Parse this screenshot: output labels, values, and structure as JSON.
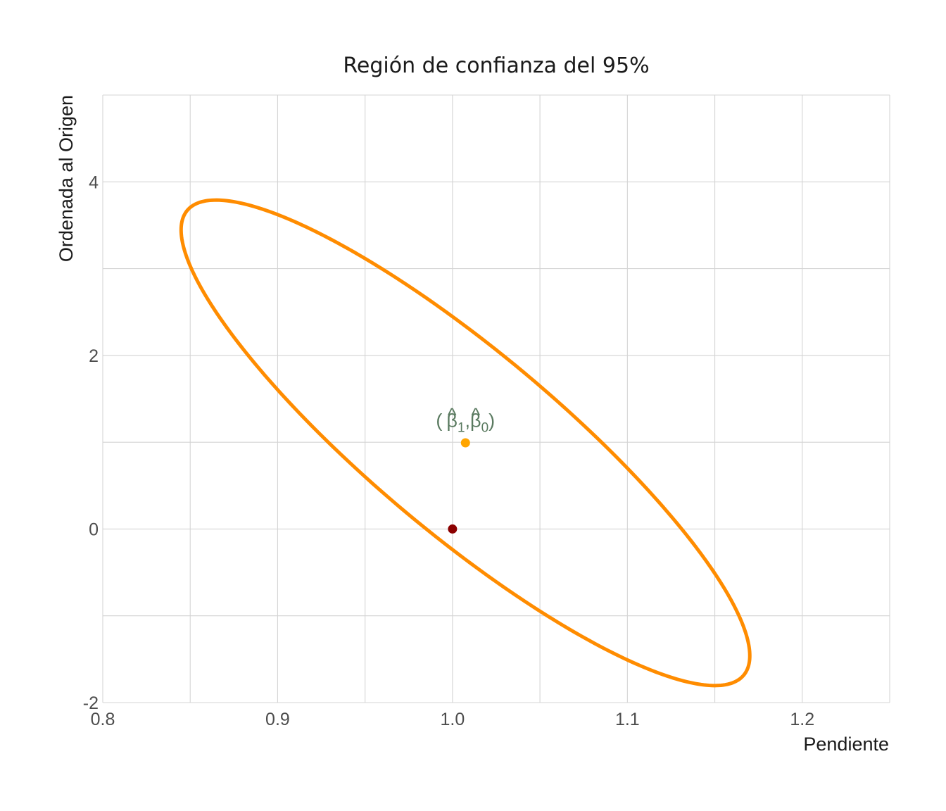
{
  "chart_data": {
    "type": "scatter",
    "title": "Región de confianza del 95%",
    "xlabel": "Pendiente",
    "ylabel": "Ordenada al Origen",
    "xlim": [
      0.8,
      1.25
    ],
    "ylim": [
      -2,
      5
    ],
    "x_ticks": [
      0.8,
      0.9,
      1.0,
      1.1,
      1.2
    ],
    "x_tick_labels": [
      "0.8",
      "0.9",
      "1.0",
      "1.1",
      "1.2"
    ],
    "y_ticks": [
      -2,
      0,
      2,
      4
    ],
    "y_tick_labels": [
      "-2",
      "0",
      "2",
      "4"
    ],
    "grid": true,
    "ellipse": {
      "center": [
        1.0074,
        0.993
      ],
      "extreme_points": {
        "min_x": [
          0.845,
          3.45
        ],
        "max_x": [
          1.17,
          -1.46
        ],
        "max_y": [
          0.864,
          3.79
        ],
        "min_y": [
          1.151,
          -1.79
        ]
      },
      "color": "#FF8C00"
    },
    "points": [
      {
        "x": 1.0074,
        "y": 0.993,
        "color": "#FFA500"
      },
      {
        "x": 1.0,
        "y": 0.0,
        "color": "#8B0000"
      }
    ],
    "annotation": {
      "open": "(",
      "beta": "β",
      "hat": "^",
      "sub1": "1",
      "comma": ",",
      "sub0": "0",
      "close": ")",
      "x": 1.0074,
      "y": 1.25,
      "color": "#5a7a60"
    }
  }
}
